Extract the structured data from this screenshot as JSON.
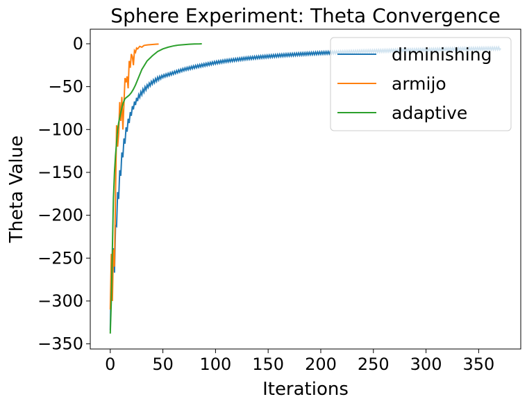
{
  "chart_data": {
    "type": "line",
    "title": "Sphere Experiment: Theta Convergence",
    "xlabel": "Iterations",
    "ylabel": "Theta Value",
    "xlim": [
      -19,
      390
    ],
    "ylim": [
      -356,
      17
    ],
    "xticks": [
      0,
      50,
      100,
      150,
      200,
      250,
      300,
      350
    ],
    "yticks": [
      0,
      -50,
      -100,
      -150,
      -200,
      -250,
      -300,
      -350
    ],
    "xtick_labels": [
      "0",
      "50",
      "100",
      "150",
      "200",
      "250",
      "300",
      "350"
    ],
    "ytick_labels": [
      "0",
      "−50",
      "−100",
      "−150",
      "−200",
      "−250",
      "−300",
      "−350"
    ],
    "grid": false,
    "legend_position": "top-right",
    "series": [
      {
        "name": "diminishing",
        "color": "#1f77b4",
        "x": [
          0,
          2,
          4,
          6,
          8,
          10,
          12,
          14,
          16,
          18,
          20,
          22,
          25,
          28,
          32,
          36,
          40,
          45,
          50,
          55,
          60,
          65,
          70,
          80,
          90,
          100,
          110,
          120,
          130,
          140,
          150,
          160,
          170,
          180,
          190,
          200,
          220,
          240,
          260,
          280,
          300,
          320,
          340,
          360,
          371
        ],
        "y": [
          -314,
          -260,
          -252,
          -200,
          -170,
          -145,
          -125,
          -110,
          -97,
          -88,
          -80,
          -73,
          -66,
          -60,
          -54,
          -49,
          -45,
          -41,
          -38,
          -36,
          -34,
          -32,
          -30,
          -27,
          -24.5,
          -22,
          -20,
          -18.5,
          -17,
          -15.8,
          -14.7,
          -13.7,
          -12.9,
          -12.1,
          -11.4,
          -10.8,
          -9.8,
          -8.9,
          -8.2,
          -7.5,
          -7.0,
          -6.5,
          -6.0,
          -5.6,
          -5.4
        ],
        "oscillation": [
          40,
          40,
          30,
          26,
          22,
          18,
          15,
          13,
          11,
          9,
          8,
          7,
          6,
          5,
          5,
          4,
          4,
          4,
          3,
          3,
          3,
          3,
          3,
          3,
          3,
          3,
          3,
          3,
          3,
          3,
          3,
          3,
          3,
          3,
          3,
          3,
          3,
          3,
          3,
          3,
          3,
          3,
          3,
          3,
          3
        ]
      },
      {
        "name": "armijo",
        "color": "#ff7f0e",
        "x": [
          0,
          1,
          2,
          3,
          4,
          5,
          6,
          7,
          8,
          9,
          10,
          11,
          12,
          13,
          14,
          15,
          16,
          17,
          18,
          19,
          20,
          21,
          22,
          23,
          24,
          25,
          26,
          28,
          30,
          32,
          34,
          36,
          38,
          40,
          42,
          44,
          46
        ],
        "y": [
          -310,
          -245,
          -300,
          -240,
          -260,
          -175,
          -95,
          -120,
          -105,
          -68,
          -90,
          -62,
          -100,
          -70,
          -40,
          -45,
          -38,
          -52,
          -20,
          -28,
          -12,
          -15,
          -25,
          -8,
          -10,
          -5,
          -6,
          -3,
          -4,
          -2,
          -1.5,
          -1.2,
          -1,
          -0.8,
          -0.6,
          -0.4,
          -0.3
        ]
      },
      {
        "name": "adaptive",
        "color": "#2ca02c",
        "x": [
          0,
          1,
          2,
          3,
          4,
          5,
          6,
          7,
          8,
          10,
          12,
          14,
          16,
          18,
          20,
          22,
          24,
          26,
          28,
          30,
          35,
          40,
          45,
          50,
          55,
          60,
          65,
          70,
          75,
          80,
          85,
          87
        ],
        "y": [
          -338,
          -300,
          -240,
          -180,
          -150,
          -130,
          -115,
          -100,
          -92,
          -80,
          -70,
          -64,
          -62,
          -60,
          -57,
          -53,
          -48,
          -42,
          -36,
          -30,
          -20,
          -14,
          -9,
          -6,
          -4,
          -2.5,
          -1.5,
          -1,
          -0.5,
          -0.2,
          -0.1,
          0
        ]
      }
    ]
  }
}
